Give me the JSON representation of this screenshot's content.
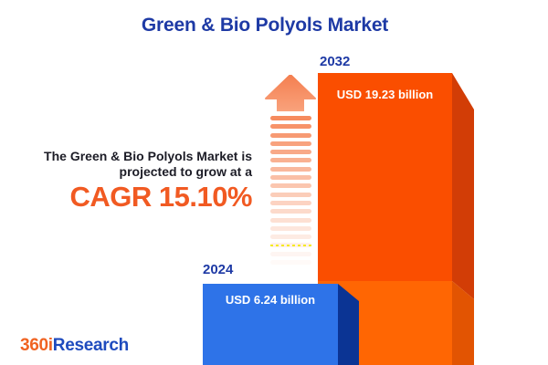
{
  "title": "Green & Bio Polyols Market",
  "annotation": {
    "line1": "The Green & Bio Polyols Market is",
    "line2": "projected to grow at a",
    "cagr_label": "CAGR 15.10%"
  },
  "chart_data": {
    "type": "bar",
    "title": "Green & Bio Polyols Market",
    "categories": [
      "2024",
      "2032"
    ],
    "values": [
      6.24,
      19.23
    ],
    "unit": "USD billion",
    "value_labels": [
      "USD 6.24 billion",
      "USD 19.23 billion"
    ],
    "cagr_percent": 15.1,
    "annotation": "The Green & Bio Polyols Market is projected to grow at a CAGR 15.10%",
    "legend": false,
    "grid": false,
    "style": "pictorial 3D bar infographic, no axes"
  },
  "logo": {
    "prefix": "360i",
    "suffix": "Research"
  },
  "colors": {
    "background": "#ffffff",
    "title_blue": "#1e3aa5",
    "body_text": "#1c1c26",
    "cagr_orange": "#f15a22",
    "value_text": "#ffffff",
    "bar_2024_front": "#2e73e8",
    "bar_2024_side": "#0b3494",
    "bar_2032_front_top": "#fa4e00",
    "bar_2032_front_bottom": "#ff6603",
    "bar_2032_side_top": "#d23d06",
    "bar_2032_side_bottom": "#e25402",
    "arrow_orange": "#f6875c",
    "stripe_orange": "#f68b5e",
    "logo_orange": "#f06322",
    "logo_blue": "#1e4bbe"
  }
}
